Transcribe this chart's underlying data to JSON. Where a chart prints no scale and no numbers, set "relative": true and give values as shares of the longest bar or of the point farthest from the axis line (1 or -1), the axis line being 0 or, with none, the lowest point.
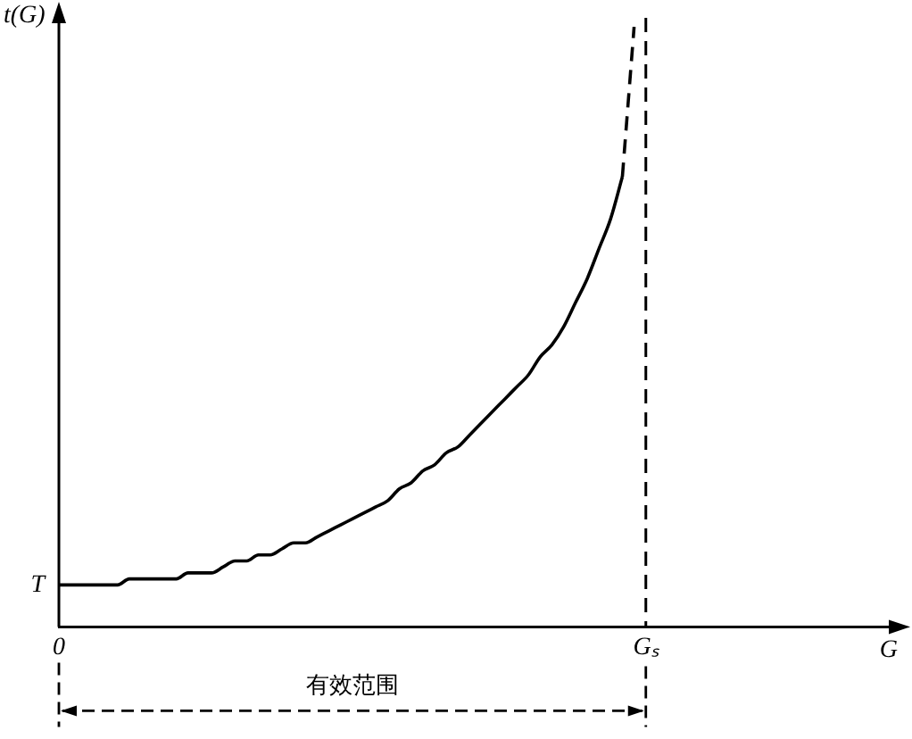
{
  "chart_data": {
    "type": "line",
    "relative": true,
    "ylabel": "t(G)",
    "xlabel": "G",
    "grid": false,
    "legend": false,
    "marker": "none",
    "categories": [
      "0",
      null,
      null,
      null,
      null,
      null,
      null,
      null,
      null,
      null,
      null,
      null,
      null,
      null,
      null,
      null,
      null,
      null,
      null,
      null,
      null,
      null,
      null,
      null,
      null,
      null,
      null,
      null,
      null,
      null,
      null,
      null,
      null,
      null,
      null,
      null,
      null,
      null,
      null,
      null,
      null,
      null,
      null,
      null,
      null,
      null,
      null,
      null,
      null,
      null,
      "Gₛ",
      null,
      null,
      null,
      null,
      null,
      null,
      null,
      null,
      null,
      null,
      null,
      null,
      null,
      null,
      null,
      null,
      null,
      null,
      null,
      null,
      null
    ],
    "series": [
      {
        "color": "#000000",
        "line_style": "solid",
        "values": [
          0.07,
          0.07,
          0.07,
          0.07,
          0.07,
          0.07,
          0.08,
          0.08,
          0.08,
          0.08,
          0.08,
          0.09,
          0.09,
          0.09,
          0.1,
          0.11,
          0.11,
          0.12,
          0.12,
          0.13,
          0.14,
          0.14,
          0.15,
          0.16,
          0.17,
          0.18,
          0.19,
          0.2,
          0.21,
          0.23,
          0.24,
          0.26,
          0.27,
          0.29,
          0.3,
          0.32,
          0.34,
          0.36,
          0.38,
          0.4,
          0.42,
          0.45,
          0.47,
          0.5,
          0.54,
          0.58,
          0.63,
          0.68,
          0.75,
          null,
          null,
          null,
          null,
          null,
          null,
          null,
          null,
          null,
          null,
          null,
          null,
          null,
          null,
          null,
          null,
          null,
          null,
          null,
          null,
          null,
          null,
          null
        ]
      },
      {
        "color": "#000000",
        "line_style": "dashed",
        "values": [
          null,
          null,
          null,
          null,
          null,
          null,
          null,
          null,
          null,
          null,
          null,
          null,
          null,
          null,
          null,
          null,
          null,
          null,
          null,
          null,
          null,
          null,
          null,
          null,
          null,
          null,
          null,
          null,
          null,
          null,
          null,
          null,
          null,
          null,
          null,
          null,
          null,
          null,
          null,
          null,
          null,
          null,
          null,
          null,
          null,
          null,
          null,
          null,
          0.75,
          1.0,
          null,
          null,
          null,
          null,
          null,
          null,
          null,
          null,
          null,
          null,
          null,
          null,
          null,
          null,
          null,
          null,
          null,
          null,
          null,
          null,
          null,
          null
        ]
      }
    ],
    "ref_lines": [
      {
        "axis": "x",
        "value": "Gₛ",
        "color": "#000000",
        "line_style": "dashed"
      }
    ],
    "annotations": [
      {
        "text": "T",
        "x": "0",
        "y": 0.07
      },
      "有效范围"
    ]
  }
}
